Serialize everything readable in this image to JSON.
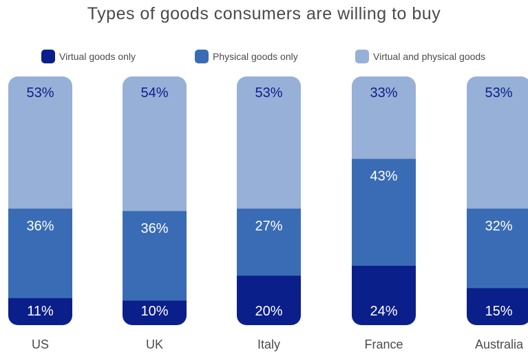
{
  "title": "Types of goods consumers are willing to buy",
  "colors": {
    "virtual": "#0b1f8a",
    "physical": "#3a6cb5",
    "both": "#97b0d7",
    "label_dark": "#0b1f8a",
    "label_light": "#ffffff",
    "text": "#4a4a4a"
  },
  "legend": [
    {
      "label": "Virtual goods only",
      "color": "#0b1f8a"
    },
    {
      "label": "Physical goods only",
      "color": "#3a6cb5"
    },
    {
      "label": "Virtual and physical goods",
      "color": "#97b0d7"
    }
  ],
  "chart_data": {
    "type": "bar",
    "stacked": true,
    "title": "Types of goods consumers are willing to buy",
    "categories": [
      "US",
      "UK",
      "Italy",
      "France",
      "Australia"
    ],
    "series": [
      {
        "name": "Virtual goods only",
        "values": [
          11,
          10,
          20,
          24,
          15
        ],
        "labels": [
          "11%",
          "10%",
          "20%",
          "24%",
          "15%"
        ]
      },
      {
        "name": "Physical goods only",
        "values": [
          36,
          36,
          27,
          43,
          32
        ],
        "labels": [
          "36%",
          "36%",
          "27%",
          "43%",
          "32%"
        ]
      },
      {
        "name": "Virtual and physical goods",
        "values": [
          53,
          54,
          53,
          33,
          53
        ],
        "labels": [
          "53%",
          "54%",
          "53%",
          "33%",
          "53%"
        ]
      }
    ],
    "legend_position": "top",
    "grid": false,
    "ylim": [
      0,
      100
    ]
  }
}
